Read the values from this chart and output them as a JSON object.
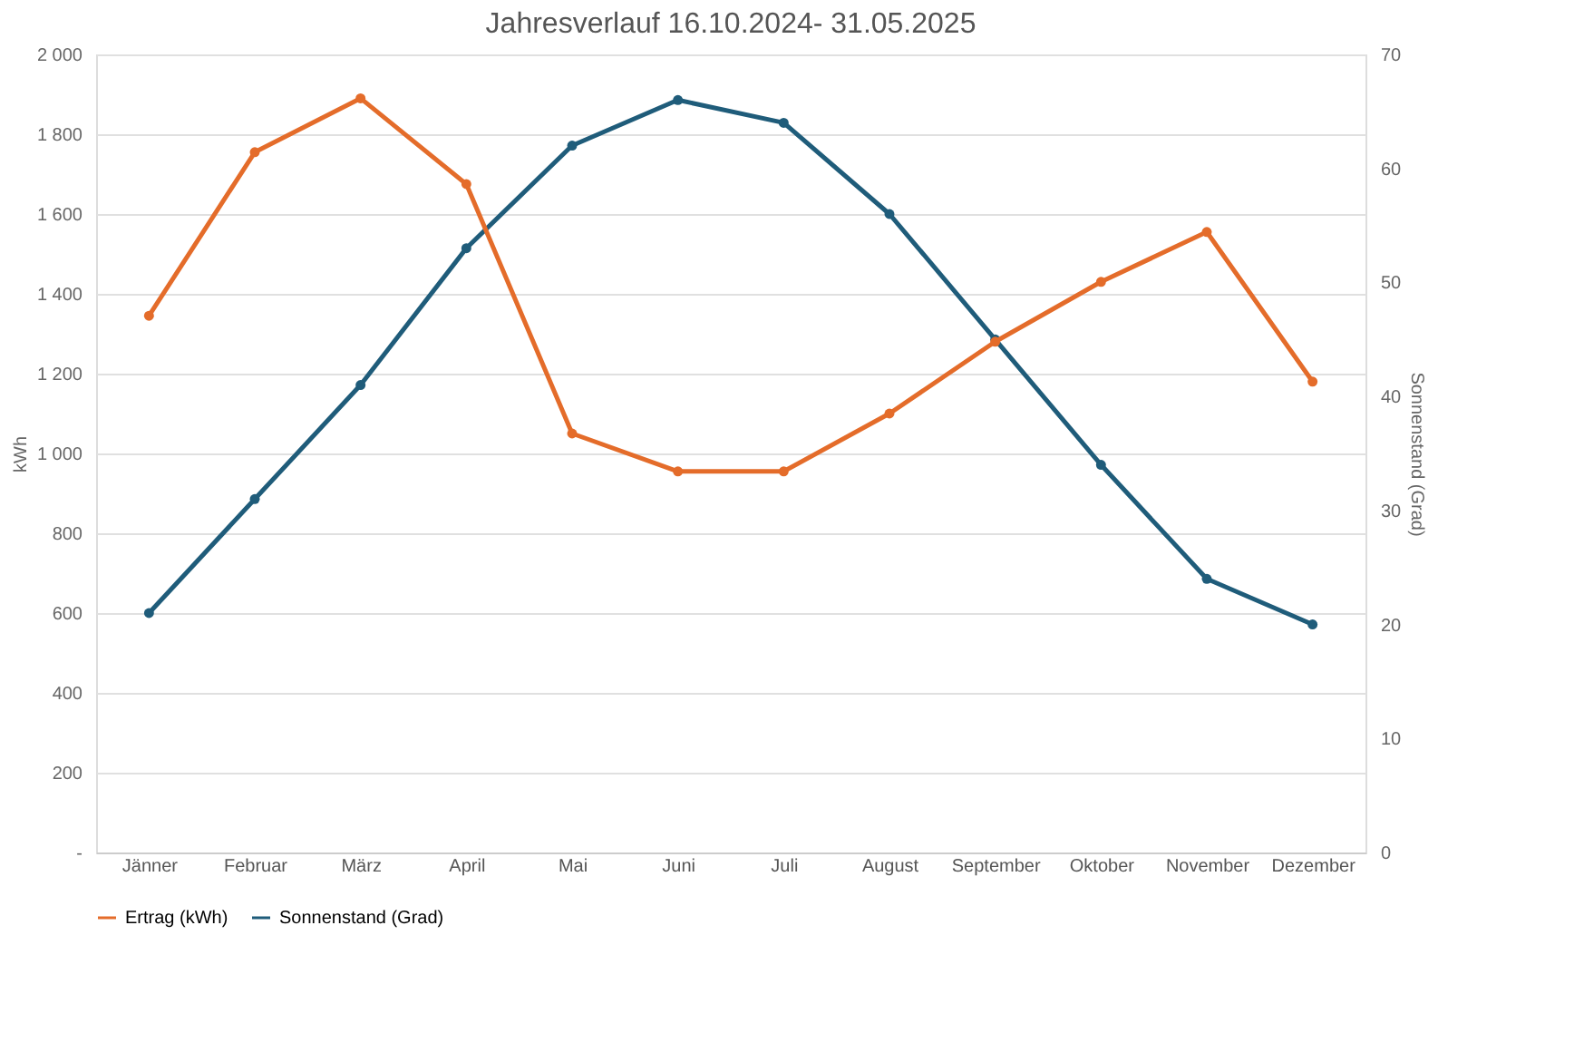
{
  "chart_data": {
    "type": "line",
    "title": "Jahresverlauf 16.10.2024- 31.05.2025",
    "categories": [
      "Jänner",
      "Februar",
      "März",
      "April",
      "Mai",
      "Juni",
      "Juli",
      "August",
      "September",
      "Oktober",
      "November",
      "Dezember"
    ],
    "ylabel": "kWh",
    "y2label": "Sonnenstand (Grad)",
    "series": [
      {
        "name": "Ertrag (kWh)",
        "color": "#e46c2a",
        "values": [
          1345,
          1755,
          1890,
          1675,
          1050,
          955,
          955,
          1100,
          1280,
          1430,
          1555,
          1180
        ]
      },
      {
        "name": "Sonnenstand (Grad)",
        "color": "#1f5c7a",
        "axis": "y2",
        "values": [
          21,
          31,
          41,
          53,
          62,
          66,
          64,
          56,
          45,
          34,
          24,
          20
        ]
      }
    ],
    "ylim": [
      0,
      2000
    ],
    "yticks": [
      {
        "value": 0,
        "label": "-"
      },
      200,
      400,
      600,
      800,
      {
        "value": 1000,
        "label": "1 000"
      },
      {
        "value": 1200,
        "label": "1 200"
      },
      {
        "value": 1400,
        "label": "1 400"
      },
      {
        "value": 1600,
        "label": "1 600"
      },
      {
        "value": 1800,
        "label": "1 800"
      },
      {
        "value": 2000,
        "label": "2 000"
      }
    ],
    "y2lim": [
      0,
      70
    ],
    "y2ticks": [
      0,
      10,
      20,
      30,
      40,
      50,
      60,
      70
    ],
    "grid": "y",
    "legend": "bottom",
    "marker": "circle",
    "line_style": "solid"
  }
}
